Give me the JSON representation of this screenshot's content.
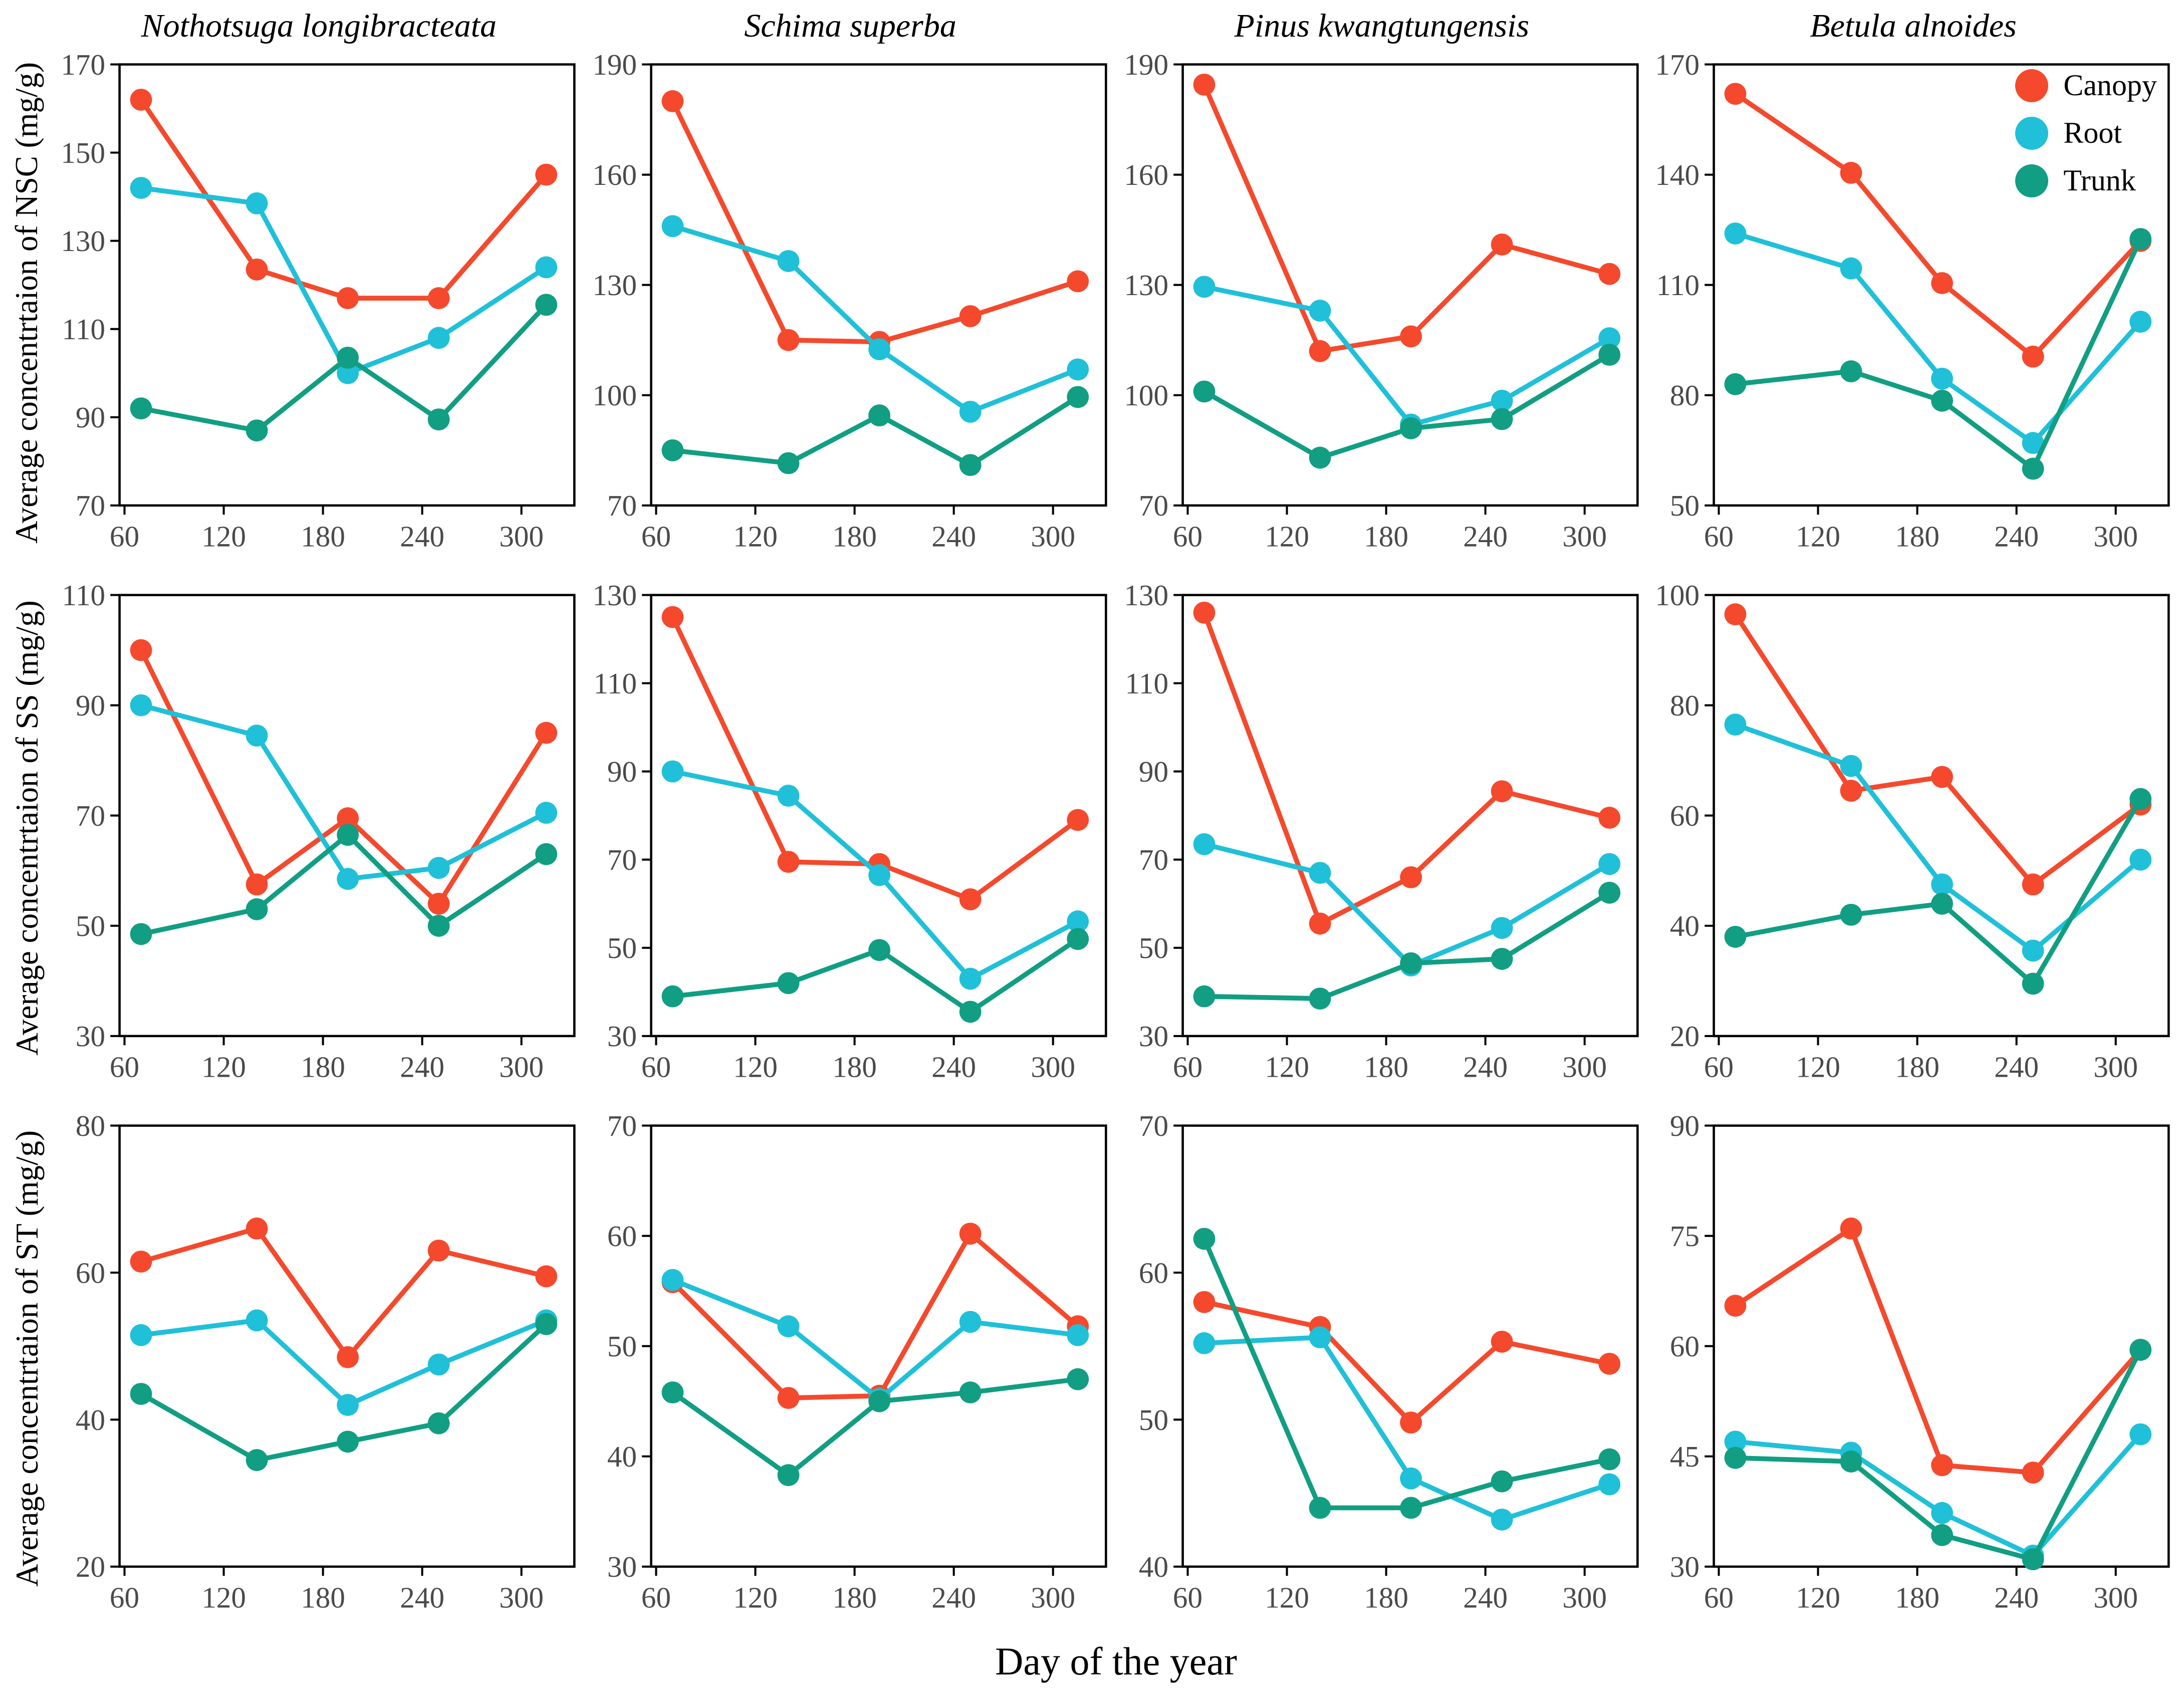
{
  "figure": {
    "xlabel": "Day of the year",
    "row_labels": [
      "Average concentrtaion of NSC (mg/g)",
      "Average concentrtaion of SS (mg/g)",
      "Average concentrtaion of ST (mg/g)"
    ],
    "column_titles": [
      "Nothotsuga longibracteata",
      "Schima superba",
      "Pinus kwangtungensis",
      "Betula alnoides"
    ]
  },
  "legend": {
    "position": "top-right-of-last-column-first-row",
    "items": [
      {
        "label": "Canopy",
        "color": "#F4492D"
      },
      {
        "label": "Root",
        "color": "#1FC0D8"
      },
      {
        "label": "Trunk",
        "color": "#119E82"
      }
    ]
  },
  "style_colors": {
    "axis": "#000000",
    "tick_text": "#4a4a4a",
    "background": "#ffffff"
  },
  "chart_data": [
    {
      "type": "line",
      "title": "Nothotsuga longibracteata",
      "measure": "NSC",
      "ylabel": "Average concentrtaion of NSC (mg/g)",
      "xlabel": "Day of the year",
      "x": [
        70,
        140,
        195,
        250,
        315
      ],
      "xlim": [
        57,
        332
      ],
      "xticks": [
        60,
        120,
        180,
        240,
        300
      ],
      "ylim": [
        70,
        170
      ],
      "yticks": [
        70,
        90,
        110,
        130,
        150,
        170
      ],
      "grid": false,
      "series": [
        {
          "name": "Canopy",
          "values": [
            162,
            123.5,
            117,
            117,
            145
          ]
        },
        {
          "name": "Root",
          "values": [
            142,
            138.5,
            100,
            108,
            124
          ]
        },
        {
          "name": "Trunk",
          "values": [
            92,
            87,
            103.5,
            89.5,
            115.5
          ]
        }
      ]
    },
    {
      "type": "line",
      "title": "Schima superba",
      "measure": "NSC",
      "ylabel": "Average concentrtaion of NSC (mg/g)",
      "xlabel": "Day of the year",
      "x": [
        70,
        140,
        195,
        250,
        315
      ],
      "xlim": [
        57,
        332
      ],
      "xticks": [
        60,
        120,
        180,
        240,
        300
      ],
      "ylim": [
        70,
        190
      ],
      "yticks": [
        70,
        100,
        130,
        160,
        190
      ],
      "grid": false,
      "series": [
        {
          "name": "Canopy",
          "values": [
            180,
            115,
            114.5,
            121.5,
            131
          ]
        },
        {
          "name": "Root",
          "values": [
            146,
            136.5,
            112.5,
            95.5,
            107
          ]
        },
        {
          "name": "Trunk",
          "values": [
            85,
            81.5,
            94.5,
            81,
            99.5
          ]
        }
      ]
    },
    {
      "type": "line",
      "title": "Pinus kwangtungensis",
      "measure": "NSC",
      "ylabel": "Average concentrtaion of NSC (mg/g)",
      "xlabel": "Day of the year",
      "x": [
        70,
        140,
        195,
        250,
        315
      ],
      "xlim": [
        57,
        332
      ],
      "xticks": [
        60,
        120,
        180,
        240,
        300
      ],
      "ylim": [
        70,
        190
      ],
      "yticks": [
        70,
        100,
        130,
        160,
        190
      ],
      "grid": false,
      "series": [
        {
          "name": "Canopy",
          "values": [
            184.5,
            112,
            116,
            141,
            133
          ]
        },
        {
          "name": "Root",
          "values": [
            129.5,
            123,
            92,
            98.5,
            115.5
          ]
        },
        {
          "name": "Trunk",
          "values": [
            101,
            83,
            91,
            93.5,
            111
          ]
        }
      ]
    },
    {
      "type": "line",
      "title": "Betula alnoides",
      "measure": "NSC",
      "ylabel": "Average concentrtaion of NSC (mg/g)",
      "xlabel": "Day of the year",
      "x": [
        70,
        140,
        195,
        250,
        315
      ],
      "xlim": [
        57,
        332
      ],
      "xticks": [
        60,
        120,
        180,
        240,
        300
      ],
      "ylim": [
        50,
        170
      ],
      "yticks": [
        50,
        80,
        110,
        140,
        170
      ],
      "grid": false,
      "legend": true,
      "series": [
        {
          "name": "Canopy",
          "values": [
            162,
            140.5,
            110.5,
            90.5,
            122
          ]
        },
        {
          "name": "Root",
          "values": [
            124,
            114.5,
            84.5,
            67,
            100
          ]
        },
        {
          "name": "Trunk",
          "values": [
            83,
            86.5,
            78.5,
            60,
            122.5
          ]
        }
      ]
    },
    {
      "type": "line",
      "title": "Nothotsuga longibracteata",
      "measure": "SS",
      "ylabel": "Average concentrtaion of SS (mg/g)",
      "xlabel": "Day of the year",
      "x": [
        70,
        140,
        195,
        250,
        315
      ],
      "xlim": [
        57,
        332
      ],
      "xticks": [
        60,
        120,
        180,
        240,
        300
      ],
      "ylim": [
        30,
        110
      ],
      "yticks": [
        30,
        50,
        70,
        90,
        110
      ],
      "grid": false,
      "series": [
        {
          "name": "Canopy",
          "values": [
            100,
            57.5,
            69.5,
            54,
            85
          ]
        },
        {
          "name": "Root",
          "values": [
            90,
            84.5,
            58.5,
            60.5,
            70.5
          ]
        },
        {
          "name": "Trunk",
          "values": [
            48.5,
            53,
            66.5,
            50,
            63
          ]
        }
      ]
    },
    {
      "type": "line",
      "title": "Schima superba",
      "measure": "SS",
      "ylabel": "Average concentrtaion of SS (mg/g)",
      "xlabel": "Day of the year",
      "x": [
        70,
        140,
        195,
        250,
        315
      ],
      "xlim": [
        57,
        332
      ],
      "xticks": [
        60,
        120,
        180,
        240,
        300
      ],
      "ylim": [
        30,
        130
      ],
      "yticks": [
        30,
        50,
        70,
        90,
        110,
        130
      ],
      "grid": false,
      "series": [
        {
          "name": "Canopy",
          "values": [
            125,
            69.5,
            69,
            61,
            79
          ]
        },
        {
          "name": "Root",
          "values": [
            90,
            84.5,
            66.5,
            43,
            56
          ]
        },
        {
          "name": "Trunk",
          "values": [
            39,
            42,
            49.5,
            35.5,
            52
          ]
        }
      ]
    },
    {
      "type": "line",
      "title": "Pinus kwangtungensis",
      "measure": "SS",
      "ylabel": "Average concentrtaion of SS (mg/g)",
      "xlabel": "Day of the year",
      "x": [
        70,
        140,
        195,
        250,
        315
      ],
      "xlim": [
        57,
        332
      ],
      "xticks": [
        60,
        120,
        180,
        240,
        300
      ],
      "ylim": [
        30,
        130
      ],
      "yticks": [
        30,
        50,
        70,
        90,
        110,
        130
      ],
      "grid": false,
      "series": [
        {
          "name": "Canopy",
          "values": [
            126,
            55.5,
            66,
            85.5,
            79.5
          ]
        },
        {
          "name": "Root",
          "values": [
            73.5,
            67,
            46,
            54.5,
            69
          ]
        },
        {
          "name": "Trunk",
          "values": [
            39,
            38.5,
            46.5,
            47.5,
            62.5
          ]
        }
      ]
    },
    {
      "type": "line",
      "title": "Betula alnoides",
      "measure": "SS",
      "ylabel": "Average concentrtaion of SS (mg/g)",
      "xlabel": "Day of the year",
      "x": [
        70,
        140,
        195,
        250,
        315
      ],
      "xlim": [
        57,
        332
      ],
      "xticks": [
        60,
        120,
        180,
        240,
        300
      ],
      "ylim": [
        20,
        100
      ],
      "yticks": [
        20,
        40,
        60,
        80,
        100
      ],
      "grid": false,
      "series": [
        {
          "name": "Canopy",
          "values": [
            96.5,
            64.5,
            67,
            47.5,
            62
          ]
        },
        {
          "name": "Root",
          "values": [
            76.5,
            69,
            47.5,
            35.5,
            52
          ]
        },
        {
          "name": "Trunk",
          "values": [
            38,
            42,
            44,
            29.5,
            63
          ]
        }
      ]
    },
    {
      "type": "line",
      "title": "Nothotsuga longibracteata",
      "measure": "ST",
      "ylabel": "Average concentrtaion of ST (mg/g)",
      "xlabel": "Day of the year",
      "x": [
        70,
        140,
        195,
        250,
        315
      ],
      "xlim": [
        57,
        332
      ],
      "xticks": [
        60,
        120,
        180,
        240,
        300
      ],
      "ylim": [
        20,
        80
      ],
      "yticks": [
        20,
        40,
        60,
        80
      ],
      "grid": false,
      "series": [
        {
          "name": "Canopy",
          "values": [
            61.5,
            66,
            48.5,
            63,
            59.5
          ]
        },
        {
          "name": "Root",
          "values": [
            51.5,
            53.5,
            42,
            47.5,
            53.5
          ]
        },
        {
          "name": "Trunk",
          "values": [
            43.5,
            34.5,
            37,
            39.5,
            53
          ]
        }
      ]
    },
    {
      "type": "line",
      "title": "Schima superba",
      "measure": "ST",
      "ylabel": "Average concentrtaion of ST (mg/g)",
      "xlabel": "Day of the year",
      "x": [
        70,
        140,
        195,
        250,
        315
      ],
      "xlim": [
        57,
        332
      ],
      "xticks": [
        60,
        120,
        180,
        240,
        300
      ],
      "ylim": [
        30,
        70
      ],
      "yticks": [
        30,
        40,
        50,
        60,
        70
      ],
      "grid": false,
      "series": [
        {
          "name": "Canopy",
          "values": [
            55.8,
            45.3,
            45.5,
            60.2,
            51.8
          ]
        },
        {
          "name": "Root",
          "values": [
            56,
            51.8,
            45.2,
            52.2,
            51
          ]
        },
        {
          "name": "Trunk",
          "values": [
            45.8,
            38.3,
            45,
            45.8,
            47
          ]
        }
      ]
    },
    {
      "type": "line",
      "title": "Pinus kwangtungensis",
      "measure": "ST",
      "ylabel": "Average concentrtaion of ST (mg/g)",
      "xlabel": "Day of the year",
      "x": [
        70,
        140,
        195,
        250,
        315
      ],
      "xlim": [
        57,
        332
      ],
      "xticks": [
        60,
        120,
        180,
        240,
        300
      ],
      "ylim": [
        40,
        70
      ],
      "yticks": [
        40,
        50,
        60,
        70
      ],
      "grid": false,
      "series": [
        {
          "name": "Canopy",
          "values": [
            58,
            56.3,
            49.8,
            55.3,
            53.8
          ]
        },
        {
          "name": "Root",
          "values": [
            55.2,
            55.6,
            46,
            43.2,
            45.6
          ]
        },
        {
          "name": "Trunk",
          "values": [
            62.3,
            44,
            44,
            45.8,
            47.3
          ]
        }
      ]
    },
    {
      "type": "line",
      "title": "Betula alnoides",
      "measure": "ST",
      "ylabel": "Average concentrtaion of ST (mg/g)",
      "xlabel": "Day of the year",
      "x": [
        70,
        140,
        195,
        250,
        315
      ],
      "xlim": [
        57,
        332
      ],
      "xticks": [
        60,
        120,
        180,
        240,
        300
      ],
      "ylim": [
        30,
        90
      ],
      "yticks": [
        30,
        45,
        60,
        75,
        90
      ],
      "grid": false,
      "series": [
        {
          "name": "Canopy",
          "values": [
            65.5,
            76,
            43.8,
            42.8,
            59.5
          ]
        },
        {
          "name": "Root",
          "values": [
            47,
            45.5,
            37.3,
            31.5,
            48
          ]
        },
        {
          "name": "Trunk",
          "values": [
            44.8,
            44.3,
            34.3,
            31,
            59.5
          ]
        }
      ]
    }
  ]
}
